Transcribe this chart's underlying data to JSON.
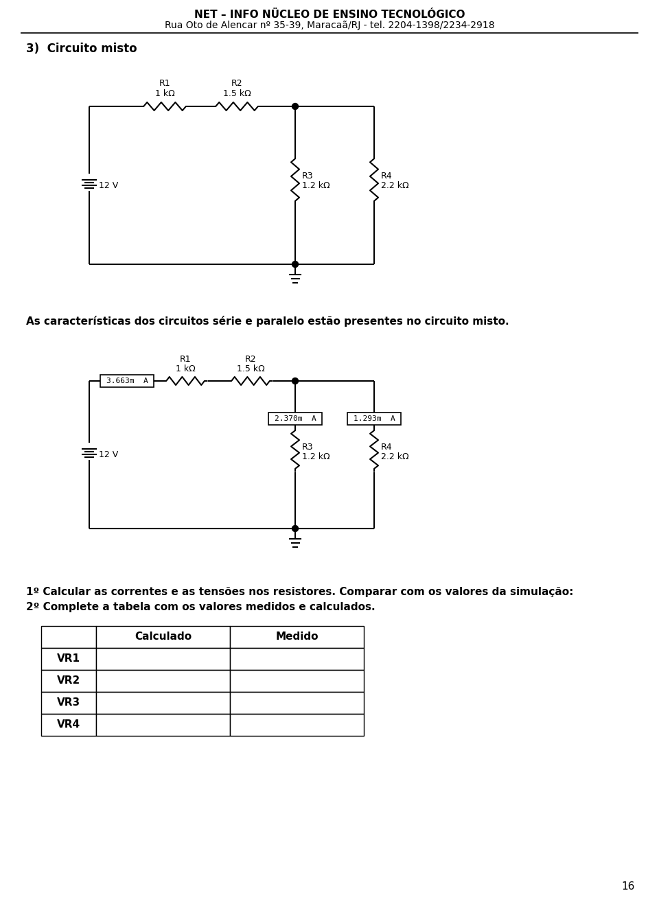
{
  "header_line1": "NET – INFO NÜCLEO DE ENSINO TECNOLÓGICO",
  "header_line2": "Rua Oto de Alencar nº 35-39, Maracaã/RJ - tel. 2204-1398/2234-2918",
  "section_title": "3)  Circuito misto",
  "R1_label": "R1",
  "R1_val": "1 kΩ",
  "R2_label": "R2",
  "R2_val": "1.5 kΩ",
  "R3_label": "R3",
  "R3_val": "1.2 kΩ",
  "R4_label": "R4",
  "R4_val": "2.2 kΩ",
  "V_label": "12 V",
  "I_total": "3.663m  A",
  "I_R3": "2.370m  A",
  "I_R4": "1.293m  A",
  "mid_text": "As características dos circuitos série e paralelo estão presentes no circuito misto.",
  "instruction1": "1º Calcular as correntes e as tensões nos resistores. Comparar com os valores da simulação:",
  "instruction2": "2º Complete a tabela com os valores medidos e calculados.",
  "table_rows": [
    "VR1",
    "VR2",
    "VR3",
    "VR4"
  ],
  "col_header_1": "Calculado",
  "col_header_2": "Medido",
  "page_number": "16",
  "bg_color": "#ffffff",
  "line_color": "#000000"
}
